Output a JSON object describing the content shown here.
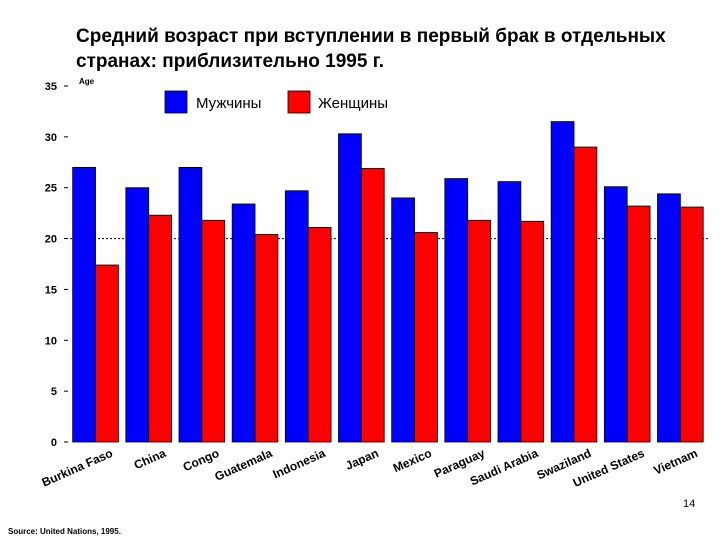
{
  "slide": {
    "title": "Средний возраст при вступлении в первый брак в отдельных странах:  приблизительно 1995 г.",
    "page_number": "14",
    "source": "Source: United Nations, 1995."
  },
  "chart_data": {
    "type": "bar",
    "title": "Средний возраст при вступлении в первый брак в отдельных странах:  приблизительно 1995 г.",
    "ylabel": "Age",
    "xlabel": "",
    "ylim": [
      0,
      35
    ],
    "yticks": [
      0,
      5,
      10,
      15,
      20,
      25,
      30,
      35
    ],
    "reference_line": 20,
    "grid": false,
    "legend_position": "top-center",
    "categories": [
      "Burkina Faso",
      "China",
      "Congo",
      "Guatemala",
      "Indonesia",
      "Japan",
      "Mexico",
      "Paraguay",
      "Saudi Arabia",
      "Swaziland",
      "United States",
      "Vietnam"
    ],
    "series": [
      {
        "name": "Мужчины",
        "color": "#0000ff",
        "values": [
          27.0,
          25.0,
          27.0,
          23.4,
          24.7,
          30.3,
          24.0,
          25.9,
          25.6,
          31.5,
          25.1,
          24.4
        ]
      },
      {
        "name": "Женщины",
        "color": "#ff0000",
        "values": [
          17.4,
          22.3,
          21.8,
          20.4,
          21.1,
          26.9,
          20.6,
          21.8,
          21.7,
          29.0,
          23.2,
          23.1
        ]
      }
    ]
  }
}
